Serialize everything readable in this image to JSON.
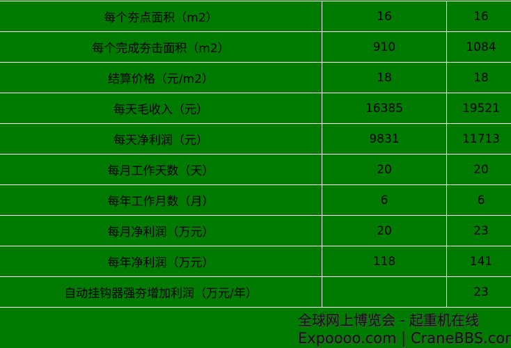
{
  "rows": [
    {
      "label": "每个夯点面积（m2）",
      "v1": "16",
      "v2": "16"
    },
    {
      "label": "每个完成夯击面积（m2）",
      "v1": "910",
      "v2": "1084"
    },
    {
      "label": "结算价格（元/m2）",
      "v1": "18",
      "v2": "18"
    },
    {
      "label": "每天毛收入（元）",
      "v1": "16385",
      "v2": "19521"
    },
    {
      "label": "每天净利润（元）",
      "v1": "9831",
      "v2": "11713"
    },
    {
      "label": "每月工作天数（天）",
      "v1": "20",
      "v2": "20"
    },
    {
      "label": "每年工作月数（月）",
      "v1": "6",
      "v2": "6"
    },
    {
      "label": "每月净利润（万元）",
      "v1": "20",
      "v2": "23"
    },
    {
      "label": "每年净利润（万元）",
      "v1": "118",
      "v2": "141"
    },
    {
      "label": "自动挂钩器强夯增加利润（万元/年）",
      "v1": "",
      "v2": "23"
    }
  ],
  "watermark": {
    "line1": "全球网上博览会 - 起重机在线",
    "line2": "Expoooo.com | CraneBBS.com"
  },
  "colors": {
    "background": "#007a00",
    "grid": "#ffffff"
  }
}
